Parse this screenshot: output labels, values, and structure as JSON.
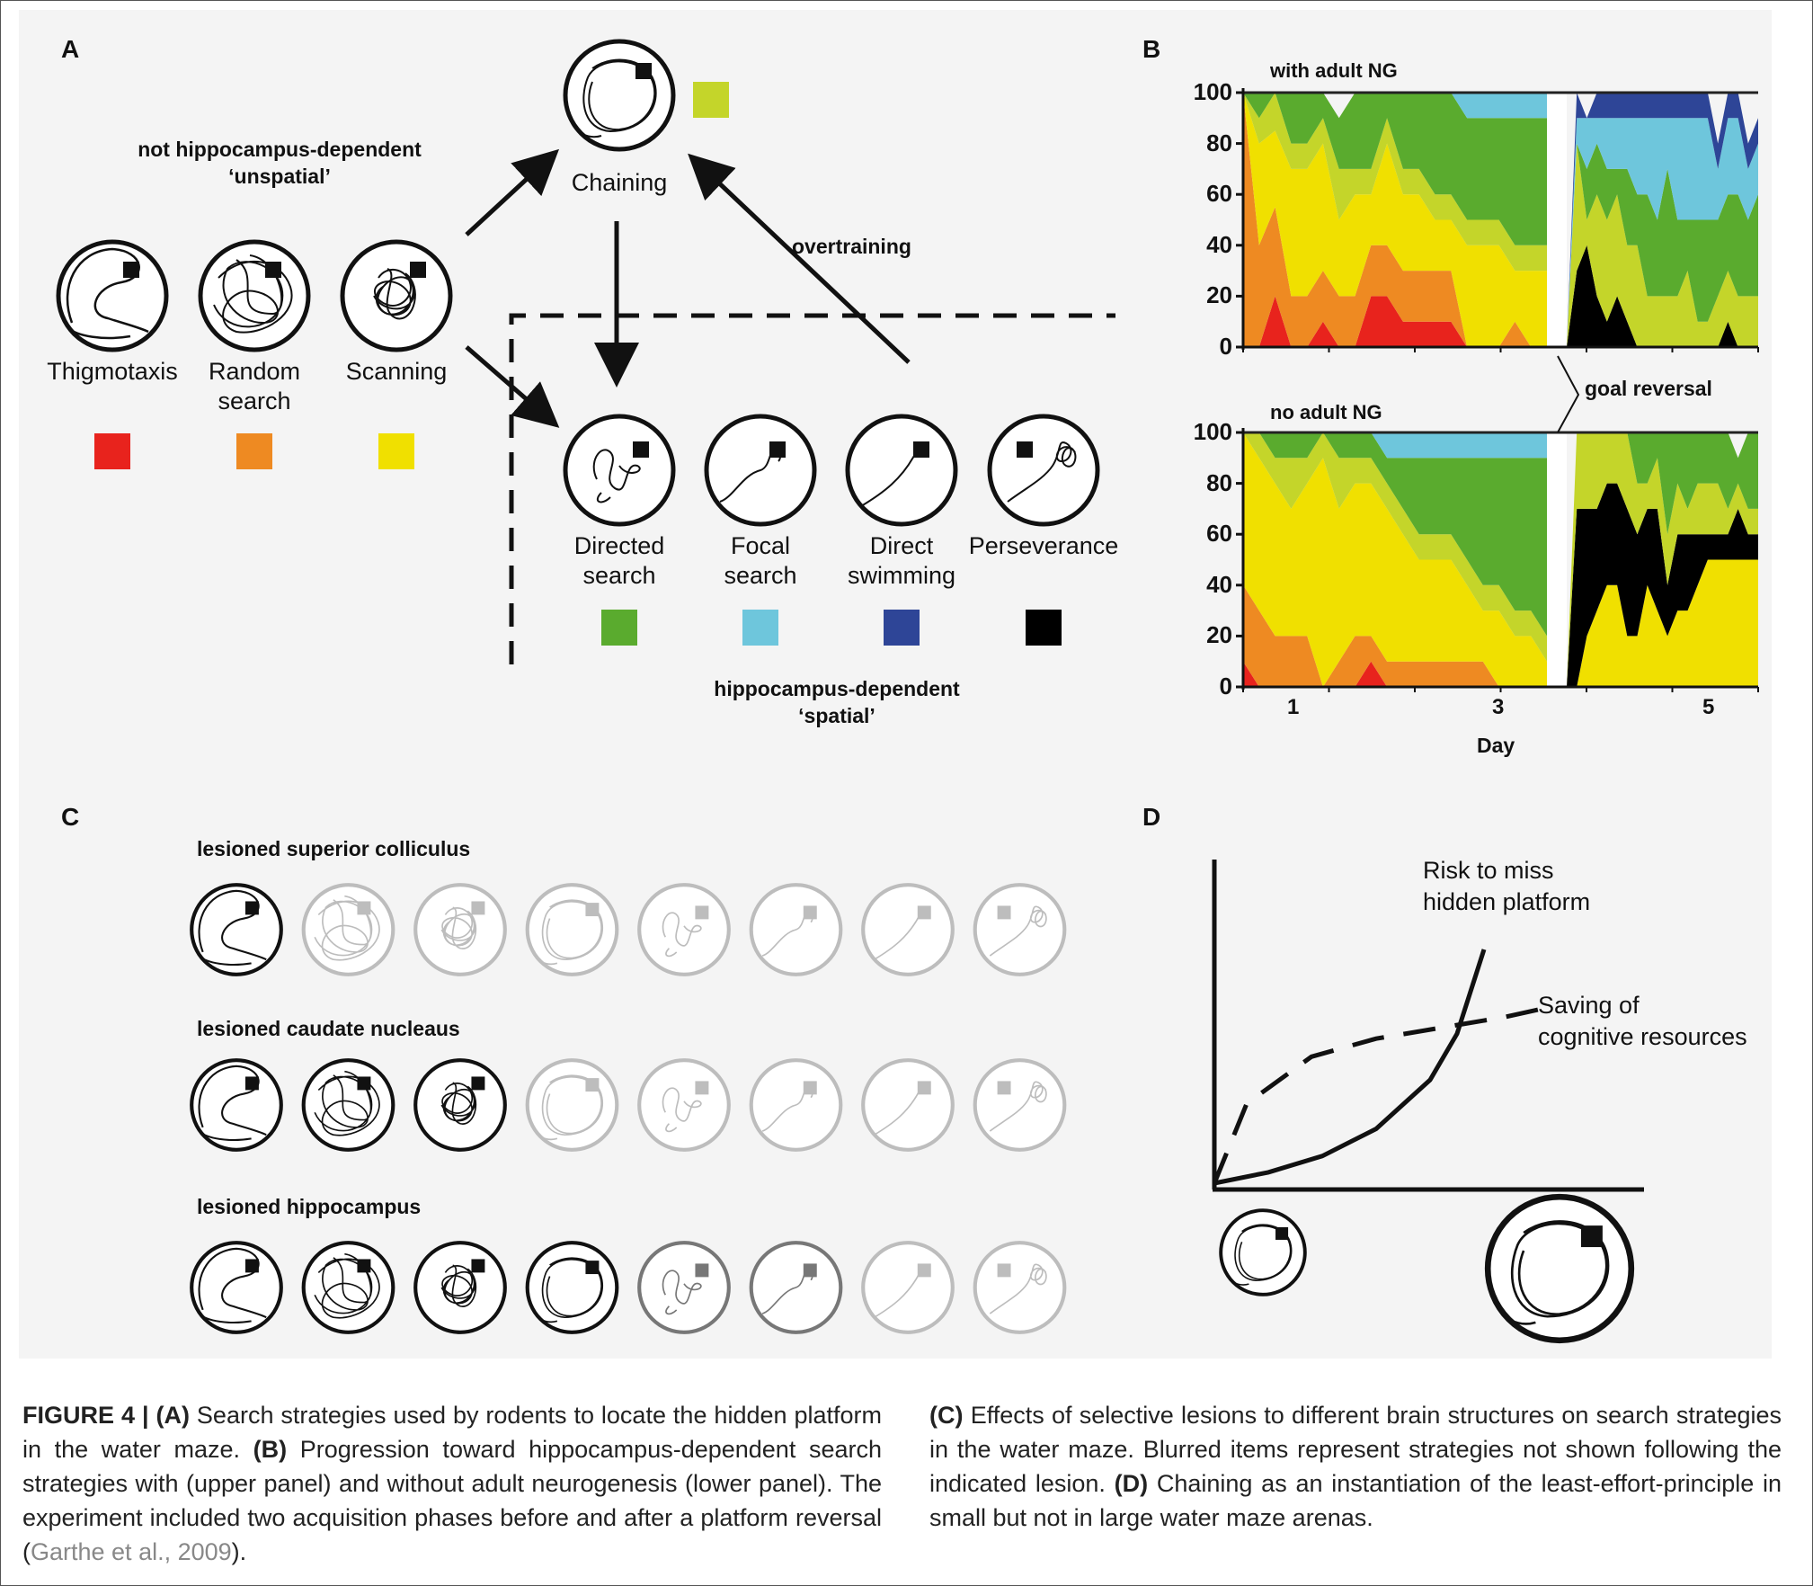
{
  "panelA": {
    "letter": "A",
    "unspatial_line1": "not hippocampus-dependent",
    "unspatial_line2": "‘unspatial’",
    "spatial_line1": "hippocampus-dependent",
    "spatial_line2": "‘spatial’",
    "overtraining": "overtraining",
    "strategies": [
      {
        "label1": "Thigmotaxis",
        "label2": "",
        "color": "#e8231d"
      },
      {
        "label1": "Random",
        "label2": "search",
        "color": "#ee8a22"
      },
      {
        "label1": "Scanning",
        "label2": "",
        "color": "#f0e000"
      },
      {
        "label1": "Chaining",
        "label2": "",
        "color": "#c4d52a"
      },
      {
        "label1": "Directed",
        "label2": "search",
        "color": "#5aab2e"
      },
      {
        "label1": "Focal",
        "label2": "search",
        "color": "#6ec6dc"
      },
      {
        "label1": "Direct",
        "label2": "swimming",
        "color": "#2e4597"
      },
      {
        "label1": "Perseverance",
        "label2": "",
        "color": "#000000"
      }
    ]
  },
  "panelB": {
    "letter": "B",
    "upper_title": "with adult NG",
    "lower_title": "no adult NG",
    "goal_reversal": "goal reversal",
    "xlabel": "Day",
    "xticks": [
      "1",
      "3",
      "5"
    ],
    "yticks": [
      "0",
      "20",
      "40",
      "60",
      "80",
      "100"
    ]
  },
  "chart_data": [
    {
      "type": "area",
      "title": "with adult NG",
      "xlabel": "Day",
      "ylabel": "",
      "ylim": [
        0,
        100
      ],
      "x": [
        1,
        2,
        3,
        4,
        5,
        6,
        7,
        8,
        9,
        10,
        11,
        12,
        13,
        14,
        15,
        16,
        17,
        18,
        19,
        20,
        21,
        22,
        23,
        24,
        25,
        26,
        27,
        28,
        29,
        30,
        31,
        32,
        33,
        34,
        35,
        36,
        37,
        38,
        39,
        40
      ],
      "phase_split_after_index": 20,
      "series": [
        {
          "name": "Thigmotaxis",
          "color": "#e8231d",
          "values": [
            0,
            0,
            20,
            0,
            0,
            10,
            0,
            0,
            20,
            20,
            10,
            10,
            10,
            10,
            0,
            0,
            0,
            0,
            0,
            0,
            0,
            0,
            0,
            0,
            0,
            0,
            0,
            0,
            0,
            0,
            0,
            0,
            0,
            0,
            0,
            0,
            0,
            0,
            0,
            0
          ]
        },
        {
          "name": "Random search",
          "color": "#ee8a22",
          "values": [
            100,
            40,
            35,
            20,
            20,
            20,
            20,
            20,
            20,
            20,
            20,
            20,
            20,
            20,
            0,
            0,
            0,
            10,
            0,
            0,
            0,
            0,
            0,
            0,
            0,
            0,
            0,
            0,
            0,
            0,
            0,
            0,
            0,
            0,
            0,
            0,
            0,
            0,
            0,
            0
          ]
        },
        {
          "name": "Scanning",
          "color": "#f0e000",
          "values": [
            0,
            40,
            30,
            50,
            50,
            50,
            30,
            40,
            20,
            40,
            30,
            30,
            20,
            20,
            40,
            40,
            40,
            20,
            30,
            30,
            0,
            0,
            0,
            0,
            0,
            0,
            0,
            0,
            0,
            0,
            0,
            0,
            0,
            0,
            0,
            0,
            0,
            0,
            0,
            0
          ]
        },
        {
          "name": "Perseverance",
          "color": "#000000",
          "values": [
            0,
            0,
            0,
            0,
            0,
            0,
            0,
            0,
            0,
            0,
            0,
            0,
            0,
            0,
            0,
            0,
            0,
            0,
            0,
            0,
            0,
            30,
            40,
            20,
            10,
            20,
            10,
            0,
            0,
            0,
            0,
            0,
            0,
            0,
            0,
            0,
            10,
            0,
            0,
            0
          ]
        },
        {
          "name": "Chaining",
          "color": "#c4d52a",
          "values": [
            0,
            10,
            20,
            10,
            10,
            10,
            20,
            10,
            10,
            10,
            10,
            10,
            10,
            10,
            10,
            10,
            10,
            10,
            10,
            10,
            0,
            50,
            10,
            40,
            40,
            40,
            30,
            40,
            20,
            20,
            20,
            20,
            30,
            10,
            10,
            20,
            20,
            20,
            20,
            20
          ]
        },
        {
          "name": "Directed search",
          "color": "#5aab2e",
          "values": [
            0,
            10,
            15,
            20,
            20,
            20,
            20,
            30,
            30,
            10,
            30,
            30,
            40,
            40,
            40,
            40,
            40,
            50,
            50,
            50,
            0,
            0,
            20,
            20,
            20,
            10,
            30,
            20,
            40,
            30,
            50,
            30,
            20,
            40,
            40,
            30,
            30,
            40,
            30,
            40
          ]
        },
        {
          "name": "Focal search",
          "color": "#6ec6dc",
          "values": [
            0,
            0,
            0,
            0,
            0,
            0,
            0,
            0,
            0,
            0,
            0,
            0,
            0,
            0,
            10,
            10,
            10,
            10,
            10,
            10,
            0,
            10,
            20,
            10,
            20,
            20,
            20,
            30,
            30,
            40,
            20,
            40,
            40,
            40,
            40,
            20,
            30,
            30,
            20,
            20
          ]
        },
        {
          "name": "Direct swimming",
          "color": "#2e4597",
          "values": [
            0,
            0,
            0,
            0,
            0,
            0,
            0,
            0,
            0,
            0,
            0,
            0,
            0,
            0,
            0,
            0,
            0,
            0,
            0,
            0,
            0,
            10,
            0,
            10,
            10,
            10,
            10,
            10,
            10,
            10,
            10,
            10,
            10,
            10,
            10,
            10,
            10,
            10,
            10,
            10
          ]
        }
      ]
    },
    {
      "type": "area",
      "title": "no adult NG",
      "xlabel": "Day",
      "ylabel": "",
      "ylim": [
        0,
        100
      ],
      "x": [
        1,
        2,
        3,
        4,
        5,
        6,
        7,
        8,
        9,
        10,
        11,
        12,
        13,
        14,
        15,
        16,
        17,
        18,
        19,
        20,
        21,
        22,
        23,
        24,
        25,
        26,
        27,
        28,
        29,
        30,
        31,
        32,
        33,
        34,
        35,
        36,
        37,
        38,
        39,
        40
      ],
      "phase_split_after_index": 20,
      "series": [
        {
          "name": "Thigmotaxis",
          "color": "#e8231d",
          "values": [
            10,
            0,
            0,
            0,
            0,
            0,
            0,
            0,
            10,
            0,
            0,
            0,
            0,
            0,
            0,
            0,
            0,
            0,
            0,
            0,
            0,
            0,
            0,
            0,
            0,
            0,
            0,
            0,
            0,
            0,
            0,
            0,
            0,
            0,
            0,
            0,
            0,
            0,
            0,
            0
          ]
        },
        {
          "name": "Random search",
          "color": "#ee8a22",
          "values": [
            30,
            30,
            20,
            20,
            20,
            0,
            10,
            20,
            10,
            10,
            10,
            10,
            10,
            10,
            10,
            10,
            0,
            0,
            0,
            0,
            0,
            0,
            0,
            0,
            0,
            0,
            0,
            0,
            0,
            0,
            0,
            0,
            0,
            0,
            0,
            0,
            0,
            0,
            0,
            0
          ]
        },
        {
          "name": "Scanning",
          "color": "#f0e000",
          "values": [
            60,
            60,
            60,
            50,
            60,
            90,
            60,
            60,
            60,
            60,
            50,
            40,
            40,
            40,
            30,
            20,
            30,
            20,
            20,
            10,
            0,
            0,
            20,
            30,
            40,
            40,
            20,
            20,
            40,
            30,
            20,
            30,
            30,
            40,
            50,
            50,
            50,
            50,
            50,
            50
          ]
        },
        {
          "name": "Perseverance",
          "color": "#000000",
          "values": [
            0,
            0,
            0,
            0,
            0,
            0,
            0,
            0,
            0,
            0,
            0,
            0,
            0,
            0,
            0,
            0,
            0,
            0,
            0,
            0,
            0,
            70,
            50,
            40,
            40,
            40,
            50,
            40,
            30,
            40,
            20,
            30,
            30,
            20,
            10,
            10,
            10,
            20,
            10,
            10
          ]
        },
        {
          "name": "Chaining",
          "color": "#c4d52a",
          "values": [
            0,
            10,
            10,
            20,
            10,
            10,
            20,
            10,
            10,
            10,
            10,
            10,
            10,
            10,
            10,
            10,
            10,
            10,
            10,
            10,
            0,
            30,
            30,
            30,
            20,
            20,
            30,
            20,
            10,
            20,
            20,
            20,
            10,
            20,
            20,
            20,
            10,
            10,
            10,
            10
          ]
        },
        {
          "name": "Directed search",
          "color": "#5aab2e",
          "values": [
            0,
            0,
            10,
            10,
            10,
            0,
            10,
            10,
            10,
            10,
            20,
            30,
            30,
            30,
            40,
            50,
            50,
            60,
            60,
            70,
            0,
            0,
            0,
            0,
            0,
            0,
            0,
            20,
            20,
            10,
            40,
            20,
            30,
            20,
            20,
            20,
            30,
            10,
            30,
            30
          ]
        },
        {
          "name": "Focal search",
          "color": "#6ec6dc",
          "values": [
            0,
            0,
            0,
            0,
            0,
            0,
            0,
            0,
            0,
            10,
            10,
            10,
            10,
            10,
            10,
            10,
            10,
            10,
            10,
            10,
            0,
            0,
            0,
            0,
            0,
            0,
            0,
            0,
            0,
            0,
            0,
            0,
            0,
            0,
            0,
            0,
            0,
            0,
            0,
            0
          ]
        },
        {
          "name": "Direct swimming",
          "color": "#2e4597",
          "values": [
            0,
            0,
            0,
            0,
            0,
            0,
            0,
            0,
            0,
            0,
            0,
            0,
            0,
            0,
            0,
            0,
            0,
            0,
            0,
            0,
            0,
            0,
            0,
            0,
            0,
            0,
            0,
            0,
            0,
            0,
            0,
            0,
            0,
            0,
            0,
            0,
            0,
            0,
            0,
            0
          ]
        }
      ]
    },
    {
      "type": "line",
      "title": "",
      "xlabel": "",
      "ylabel": "",
      "series": [
        {
          "name": "Risk to miss hidden platform",
          "style": "solid",
          "x": [
            0,
            0.2,
            0.4,
            0.6,
            0.8,
            0.9,
            1.0
          ],
          "values": [
            0,
            0.04,
            0.1,
            0.2,
            0.38,
            0.55,
            0.86
          ]
        },
        {
          "name": "Saving of cognitive resources",
          "style": "dashed",
          "x": [
            0,
            0.1,
            0.3,
            0.5,
            0.7,
            0.9,
            1.0
          ],
          "values": [
            0,
            0.22,
            0.35,
            0.4,
            0.43,
            0.46,
            0.48
          ]
        }
      ]
    }
  ],
  "panelC": {
    "letter": "C",
    "rows": [
      {
        "title": "lesioned superior colliculus",
        "opacity": [
          1,
          0.25,
          0.25,
          0.25,
          0.25,
          0.25,
          0.25,
          0.25
        ]
      },
      {
        "title": "lesioned caudate nucleaus",
        "opacity": [
          1,
          1,
          1,
          0.25,
          0.25,
          0.25,
          0.25,
          0.25
        ]
      },
      {
        "title": "lesioned hippocampus",
        "opacity": [
          1,
          1,
          1,
          1,
          0.6,
          0.6,
          0.25,
          0.25
        ]
      }
    ]
  },
  "panelD": {
    "letter": "D",
    "risk_line1": "Risk to miss",
    "risk_line2": "hidden platform",
    "saving_line1": "Saving of",
    "saving_line2": "cognitive resources"
  },
  "caption": {
    "fig_label": "FIGURE 4 |",
    "a_label": "(A)",
    "a_text": " Search strategies used by rodents to locate the hidden platform in the water maze. ",
    "b_label": "(B)",
    "b_text": " Progression toward hippocampus-dependent search strategies with (upper panel) and without adult neurogenesis (lower panel). The experiment included two acquisition phases before and after a platform reversal (",
    "citation": "Garthe et al., 2009",
    "b_end": ").",
    "c_label": "(C)",
    "c_text": " Effects of selective lesions to different brain structures on search strategies in the water maze. Blurred items represent strategies not shown following the indicated lesion. ",
    "d_label": "(D)",
    "d_text": " Chaining as an instantiation of the least-effort-principle in small but not in large water maze arenas."
  }
}
